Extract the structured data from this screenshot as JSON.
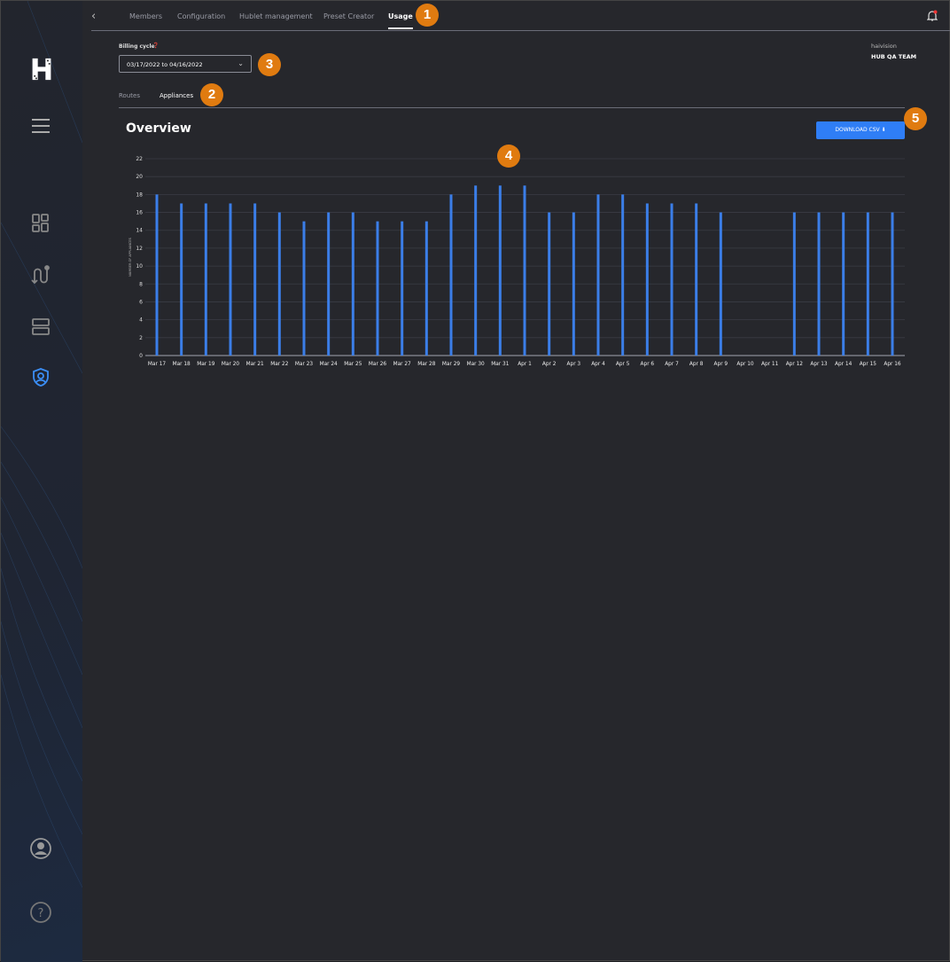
{
  "topnav": {
    "tabs": [
      "Members",
      "Configuration",
      "Hublet management",
      "Preset Creator",
      "Usage"
    ],
    "active": "Usage"
  },
  "billing": {
    "label": "Billing cycle",
    "value": "03/17/2022 to 04/16/2022"
  },
  "subtabs": {
    "items": [
      "Routes",
      "Appliances"
    ],
    "active": "Appliances"
  },
  "org": {
    "name": "haivision",
    "team": "HUB QA TEAM"
  },
  "overview": {
    "title": "Overview",
    "download_label": "DOWNLOAD CSV ⬇"
  },
  "badges": [
    "1",
    "2",
    "3",
    "4",
    "5"
  ],
  "sidebar": {
    "icons": [
      "logo-icon",
      "menu-icon",
      "dashboard-icon",
      "routes-icon",
      "devices-icon",
      "security-icon",
      "account-icon",
      "help-icon"
    ],
    "active": "security-icon"
  },
  "colors": {
    "accent": "#2f7ef6",
    "bar": "#3b7ee8",
    "badge": "#e07b10"
  },
  "chart_data": {
    "type": "bar",
    "ylabel": "NUMBER OF APPLIANCES",
    "ylim": [
      0,
      22
    ],
    "yticks": [
      0,
      2,
      4,
      6,
      8,
      10,
      12,
      14,
      16,
      18,
      20,
      22
    ],
    "grid": true,
    "categories": [
      "Mar 17",
      "Mar 18",
      "Mar 19",
      "Mar 20",
      "Mar 21",
      "Mar 22",
      "Mar 23",
      "Mar 24",
      "Mar 25",
      "Mar 26",
      "Mar 27",
      "Mar 28",
      "Mar 29",
      "Mar 30",
      "Mar 31",
      "Apr 1",
      "Apr 2",
      "Apr 3",
      "Apr 4",
      "Apr 5",
      "Apr 6",
      "Apr 7",
      "Apr 8",
      "Apr 9",
      "Apr 10",
      "Apr 11",
      "Apr 12",
      "Apr 13",
      "Apr 14",
      "Apr 15",
      "Apr 16"
    ],
    "values": [
      18,
      17,
      17,
      17,
      17,
      16,
      15,
      16,
      16,
      15,
      15,
      15,
      18,
      19,
      19,
      19,
      16,
      16,
      18,
      18,
      17,
      17,
      17,
      16,
      0,
      0,
      16,
      16,
      16,
      16,
      16
    ]
  }
}
